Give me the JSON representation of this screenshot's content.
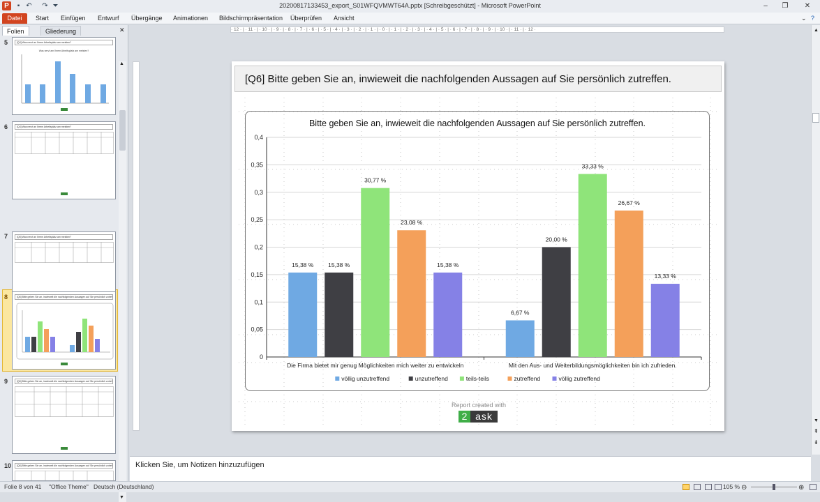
{
  "window": {
    "title": "20200817133453_export_S01WFQVMWT64A.pptx [Schreibgeschützt]  -  Microsoft PowerPoint",
    "controls": [
      "–",
      "❐",
      "✕"
    ]
  },
  "ribbon": {
    "tabs": [
      "Datei",
      "Start",
      "Einfügen",
      "Entwurf",
      "Übergänge",
      "Animationen",
      "Bildschirmpräsentation",
      "Überprüfen",
      "Ansicht"
    ]
  },
  "left_pane": {
    "tab_slides": "Folien",
    "tab_outline": "Gliederung",
    "close": "✕",
    "slides": [
      {
        "number": "5",
        "title": "[Q4] Was nervt an Ihrem Arbeitsplatz am meisten?",
        "chart_title": "Was nervt am Ihrem Arbeitsplatz am meisten?"
      },
      {
        "number": "6",
        "title": "[Q4] Was nervt an Ihrem Arbeitsplatz am meisten?"
      },
      {
        "number": "7",
        "title": "[Q5] Was nervt an Ihrem Arbeitsplatz am meisten?"
      },
      {
        "number": "8",
        "title": "[Q6] Bitte geben Sie an, inwieweit die nachfolgenden Aussagen auf Sie persönlich zutreffen.",
        "selected": true
      },
      {
        "number": "9",
        "title": "[Q6] Bitte geben Sie an, inwieweit die nachfolgenden Aussagen auf Sie persönlich zutreffen."
      },
      {
        "number": "10",
        "title": "[Q6] Bitte geben Sie an, inwieweit die nachfolgenden Aussagen auf Sie persönlich zutreffen."
      }
    ]
  },
  "ruler_text": "· 12 · | · 11 · | · 10 · | · 9 · | · 8 · | · 7 · | · 6 · | · 5 · | · 4 · | · 3 · | · 2 · | · 1 · | · 0 · | · 1 · | · 2 · | · 3 · | · 4 · | · 5 · | · 6 · | · 7 · | · 8 · | · 9 · | · 10 · | · 11 · | · 12 ·",
  "slide": {
    "title": "[Q6] Bitte geben Sie an, inwieweit die nachfolgenden Aussagen auf Sie persönlich zutreffen.",
    "report_created": "Report created with",
    "logo_digit": "2",
    "logo_word": "ask"
  },
  "chart_data": {
    "type": "bar",
    "title": "Bitte geben Sie an, inwieweit die nachfolgenden Aussagen auf Sie persönlich zutreffen.",
    "categories": [
      "Die Firma bietet mir genug Möglichkeiten mich weiter zu entwickeln",
      "Mit den Aus- und Weiterbildungsmöglichkeiten bin ich zufrieden."
    ],
    "ylim": [
      0,
      0.4
    ],
    "yticks": [
      "0",
      "0,05",
      "0,1",
      "0,15",
      "0,2",
      "0,25",
      "0,3",
      "0,35",
      "0,4"
    ],
    "grid": true,
    "legend_position": "bottom",
    "series": [
      {
        "name": "völlig unzutreffend",
        "color": "#6fa9e3",
        "values": [
          0.1538,
          0.0667
        ],
        "labels": [
          "15,38 %",
          "6,67 %"
        ]
      },
      {
        "name": "unzutreffend",
        "color": "#3f3f44",
        "values": [
          0.1538,
          0.2
        ],
        "labels": [
          "15,38 %",
          "20,00 %"
        ]
      },
      {
        "name": "teils-teils",
        "color": "#8fe47a",
        "values": [
          0.3077,
          0.3333
        ],
        "labels": [
          "30,77 %",
          "33,33 %"
        ]
      },
      {
        "name": "zutreffend",
        "color": "#f4a05a",
        "values": [
          0.2308,
          0.2667
        ],
        "labels": [
          "23,08 %",
          "26,67 %"
        ]
      },
      {
        "name": "völlig zutreffend",
        "color": "#8581e6",
        "values": [
          0.1538,
          0.1333
        ],
        "labels": [
          "15,38 %",
          "13,33 %"
        ]
      }
    ]
  },
  "notes": {
    "placeholder": "Klicken Sie, um Notizen hinzuzufügen"
  },
  "status": {
    "slide_info": "Folie 8 von 41",
    "theme": "\"Office Theme\"",
    "language": "Deutsch (Deutschland)",
    "zoom": "105 %"
  }
}
